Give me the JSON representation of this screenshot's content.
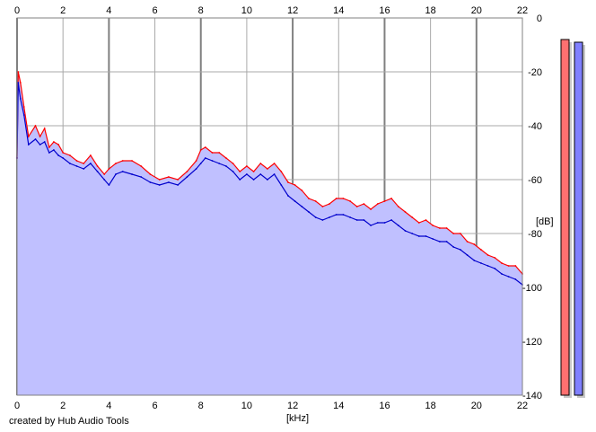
{
  "chart_data": {
    "type": "area",
    "xlabel": "[kHz]",
    "ylabel": "[dB]",
    "xlim": [
      0,
      22
    ],
    "ylim": [
      -140,
      0
    ],
    "x_ticks": [
      "0",
      "2",
      "4",
      "6",
      "8",
      "10",
      "12",
      "14",
      "16",
      "18",
      "20",
      "22"
    ],
    "y_ticks": [
      "0",
      "-20",
      "-40",
      "-60",
      "-80",
      "-100",
      "-120",
      "-140"
    ],
    "grid": true,
    "series": [
      {
        "color": "#ff0000",
        "points": [
          [
            0,
            -52
          ],
          [
            0.05,
            -20
          ],
          [
            0.15,
            -24
          ],
          [
            0.3,
            -33
          ],
          [
            0.5,
            -44
          ],
          [
            0.8,
            -40
          ],
          [
            1.0,
            -44
          ],
          [
            1.2,
            -41
          ],
          [
            1.4,
            -48
          ],
          [
            1.6,
            -46
          ],
          [
            1.8,
            -47
          ],
          [
            2.0,
            -50
          ],
          [
            2.3,
            -51
          ],
          [
            2.6,
            -53
          ],
          [
            2.9,
            -54
          ],
          [
            3.2,
            -51
          ],
          [
            3.5,
            -55
          ],
          [
            3.8,
            -58
          ],
          [
            4.0,
            -56
          ],
          [
            4.3,
            -54
          ],
          [
            4.6,
            -53
          ],
          [
            5.0,
            -53
          ],
          [
            5.4,
            -55
          ],
          [
            5.8,
            -58
          ],
          [
            6.2,
            -60
          ],
          [
            6.6,
            -59
          ],
          [
            7.0,
            -60
          ],
          [
            7.4,
            -57
          ],
          [
            7.8,
            -53
          ],
          [
            8.0,
            -49
          ],
          [
            8.2,
            -48
          ],
          [
            8.5,
            -50
          ],
          [
            8.8,
            -50
          ],
          [
            9.1,
            -52
          ],
          [
            9.4,
            -54
          ],
          [
            9.7,
            -57
          ],
          [
            10.0,
            -55
          ],
          [
            10.3,
            -57
          ],
          [
            10.6,
            -54
          ],
          [
            10.9,
            -56
          ],
          [
            11.2,
            -54
          ],
          [
            11.5,
            -57
          ],
          [
            11.8,
            -61
          ],
          [
            12.1,
            -62
          ],
          [
            12.4,
            -64
          ],
          [
            12.7,
            -67
          ],
          [
            13.0,
            -68
          ],
          [
            13.3,
            -70
          ],
          [
            13.6,
            -69
          ],
          [
            13.9,
            -67
          ],
          [
            14.2,
            -67
          ],
          [
            14.5,
            -68
          ],
          [
            14.8,
            -70
          ],
          [
            15.1,
            -69
          ],
          [
            15.4,
            -71
          ],
          [
            15.7,
            -69
          ],
          [
            16.0,
            -68
          ],
          [
            16.3,
            -67
          ],
          [
            16.6,
            -70
          ],
          [
            16.9,
            -72
          ],
          [
            17.2,
            -74
          ],
          [
            17.5,
            -76
          ],
          [
            17.8,
            -75
          ],
          [
            18.1,
            -77
          ],
          [
            18.4,
            -78
          ],
          [
            18.7,
            -78
          ],
          [
            19.0,
            -80
          ],
          [
            19.3,
            -80
          ],
          [
            19.6,
            -83
          ],
          [
            19.9,
            -84
          ],
          [
            20.2,
            -86
          ],
          [
            20.5,
            -88
          ],
          [
            20.8,
            -89
          ],
          [
            21.1,
            -91
          ],
          [
            21.4,
            -92
          ],
          [
            21.7,
            -92
          ],
          [
            22.0,
            -95
          ]
        ]
      },
      {
        "color": "#0000cc",
        "points": [
          [
            0,
            -52
          ],
          [
            0.05,
            -24
          ],
          [
            0.15,
            -30
          ],
          [
            0.3,
            -36
          ],
          [
            0.5,
            -47
          ],
          [
            0.8,
            -45
          ],
          [
            1.0,
            -47
          ],
          [
            1.2,
            -46
          ],
          [
            1.4,
            -50
          ],
          [
            1.6,
            -49
          ],
          [
            1.8,
            -51
          ],
          [
            2.0,
            -52
          ],
          [
            2.3,
            -54
          ],
          [
            2.6,
            -55
          ],
          [
            2.9,
            -56
          ],
          [
            3.2,
            -54
          ],
          [
            3.5,
            -57
          ],
          [
            3.8,
            -60
          ],
          [
            4.0,
            -62
          ],
          [
            4.3,
            -58
          ],
          [
            4.6,
            -57
          ],
          [
            5.0,
            -58
          ],
          [
            5.4,
            -59
          ],
          [
            5.8,
            -61
          ],
          [
            6.2,
            -62
          ],
          [
            6.6,
            -61
          ],
          [
            7.0,
            -62
          ],
          [
            7.4,
            -59
          ],
          [
            7.8,
            -56
          ],
          [
            8.0,
            -54
          ],
          [
            8.2,
            -52
          ],
          [
            8.5,
            -53
          ],
          [
            8.8,
            -54
          ],
          [
            9.1,
            -55
          ],
          [
            9.4,
            -57
          ],
          [
            9.7,
            -60
          ],
          [
            10.0,
            -58
          ],
          [
            10.3,
            -60
          ],
          [
            10.6,
            -58
          ],
          [
            10.9,
            -60
          ],
          [
            11.2,
            -58
          ],
          [
            11.5,
            -62
          ],
          [
            11.8,
            -66
          ],
          [
            12.1,
            -68
          ],
          [
            12.4,
            -70
          ],
          [
            12.7,
            -72
          ],
          [
            13.0,
            -74
          ],
          [
            13.3,
            -75
          ],
          [
            13.6,
            -74
          ],
          [
            13.9,
            -73
          ],
          [
            14.2,
            -73
          ],
          [
            14.5,
            -74
          ],
          [
            14.8,
            -75
          ],
          [
            15.1,
            -75
          ],
          [
            15.4,
            -77
          ],
          [
            15.7,
            -76
          ],
          [
            16.0,
            -76
          ],
          [
            16.3,
            -75
          ],
          [
            16.6,
            -77
          ],
          [
            16.9,
            -79
          ],
          [
            17.2,
            -80
          ],
          [
            17.5,
            -81
          ],
          [
            17.8,
            -81
          ],
          [
            18.1,
            -82
          ],
          [
            18.4,
            -83
          ],
          [
            18.7,
            -83
          ],
          [
            19.0,
            -85
          ],
          [
            19.3,
            -86
          ],
          [
            19.6,
            -88
          ],
          [
            19.9,
            -90
          ],
          [
            20.2,
            -91
          ],
          [
            20.5,
            -92
          ],
          [
            20.8,
            -93
          ],
          [
            21.1,
            -95
          ],
          [
            21.4,
            -96
          ],
          [
            21.7,
            -97
          ],
          [
            22.0,
            -99
          ]
        ]
      }
    ],
    "fill_color": "#c0c0ff",
    "meters": [
      {
        "color": "#ff7070",
        "level_db": -8
      },
      {
        "color": "#8080ff",
        "level_db": -9
      }
    ]
  },
  "footer": {
    "credit": "created by Hub Audio Tools"
  }
}
